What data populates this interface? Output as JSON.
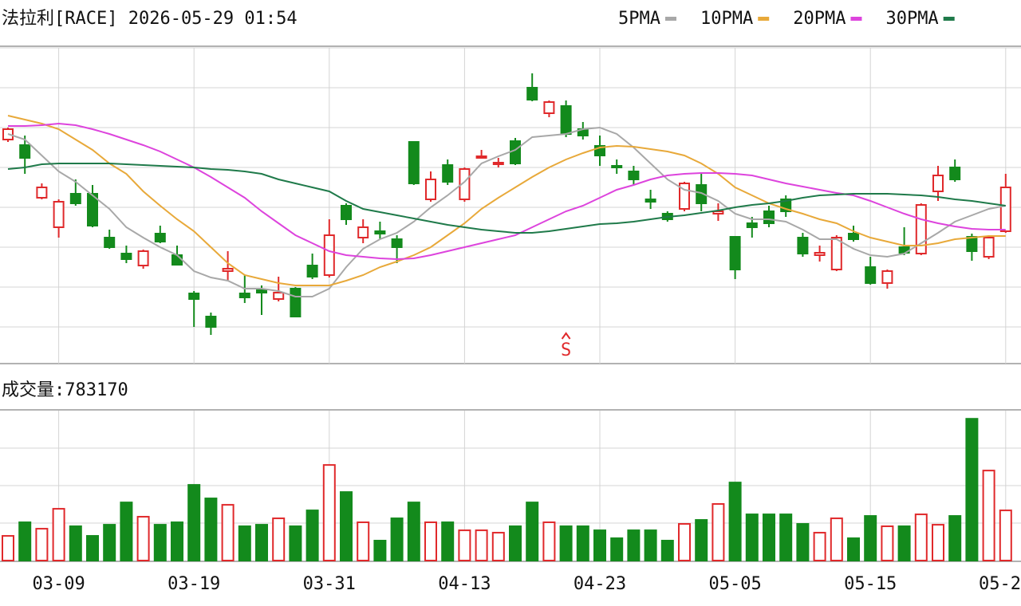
{
  "chart_data": {
    "type": "candlestick",
    "title": "法拉利[RACE] 2026-05-29 01:54",
    "categories": [
      null,
      null,
      null,
      "03-09",
      null,
      null,
      null,
      null,
      null,
      null,
      null,
      "03-19",
      null,
      null,
      null,
      null,
      null,
      null,
      null,
      "03-31",
      null,
      null,
      null,
      null,
      null,
      null,
      null,
      "04-13",
      null,
      null,
      null,
      null,
      null,
      null,
      null,
      "04-23",
      null,
      null,
      null,
      null,
      null,
      null,
      null,
      "05-05",
      null,
      null,
      null,
      null,
      null,
      null,
      null,
      "05-15",
      null,
      null,
      null,
      null,
      null,
      null,
      null,
      "05-2"
    ],
    "open": [
      27.5,
      26.8,
      20.2,
      16.5,
      20.7,
      20.7,
      15.2,
      13.2,
      11.7,
      15.7,
      13,
      8.2,
      5.3,
      11,
      8.2,
      8.7,
      7.5,
      8.8,
      11.7,
      10.5,
      19.2,
      15.2,
      16,
      15,
      27.2,
      20,
      24.3,
      20,
      25.3,
      24.5,
      27.3,
      34,
      30.8,
      31.7,
      28.8,
      26.7,
      24.2,
      23.5,
      20,
      18.2,
      18.8,
      21.8,
      18.2,
      15.3,
      17,
      18.5,
      20,
      15.2,
      13,
      11.2,
      15.7,
      11.5,
      9.5,
      14,
      13.2,
      21,
      24,
      15.3,
      12.8,
      16
    ],
    "high": [
      29,
      28,
      22,
      20,
      22.5,
      21.8,
      16.2,
      14.2,
      13.7,
      16.7,
      14.2,
      8.5,
      5.8,
      13.5,
      10.5,
      9.2,
      10.3,
      9,
      13.2,
      17.5,
      19.5,
      17.5,
      17.2,
      15.5,
      27.2,
      23.5,
      25,
      24,
      26.2,
      25.2,
      27.7,
      35.8,
      32.4,
      32.4,
      29.7,
      28,
      25,
      24.2,
      21.2,
      18.5,
      22.2,
      23.2,
      19.5,
      15.4,
      17.8,
      19.2,
      20.5,
      15.8,
      14.2,
      15.5,
      16.7,
      12.8,
      11.2,
      16.5,
      19.5,
      24.2,
      25,
      15.7,
      15.5,
      23.2
    ],
    "low": [
      27.2,
      23.2,
      20,
      15.2,
      19.2,
      16.5,
      13.8,
      12,
      11.3,
      14.5,
      11.7,
      4,
      3,
      9.8,
      7,
      5.5,
      7.2,
      5.2,
      10,
      10.2,
      16.8,
      14.5,
      15,
      12,
      21.8,
      19.7,
      21.8,
      19.7,
      25.2,
      24,
      24.3,
      32.3,
      30.3,
      27.8,
      27.5,
      24.2,
      23.2,
      21.8,
      18.8,
      17.2,
      18.5,
      18.5,
      17.3,
      10,
      15.2,
      16.5,
      17.8,
      12.8,
      12.2,
      11,
      14.7,
      9.3,
      8.8,
      13,
      13,
      19.8,
      22.2,
      12.3,
      12.5,
      15.8
    ],
    "close": [
      28.8,
      25.2,
      21.5,
      19.7,
      19.5,
      16.7,
      14,
      12.5,
      13.5,
      14.7,
      11.8,
      7.5,
      4,
      11.3,
      7.7,
      8.3,
      8.3,
      5.3,
      10.3,
      15.5,
      17.5,
      16.5,
      15.7,
      14,
      22,
      22.5,
      22.2,
      23.8,
      25.4,
      24.6,
      24.5,
      32.5,
      32.2,
      28.2,
      28,
      25.5,
      24,
      22.5,
      19.7,
      17.5,
      22,
      19.5,
      18.5,
      11.2,
      16.5,
      17,
      18.5,
      13.2,
      13.3,
      15.2,
      15,
      9.5,
      11,
      13.3,
      19.3,
      23,
      22.5,
      13.5,
      15.2,
      21.5
    ],
    "ylim": [
      0,
      39
    ],
    "up_color": "#e0292b",
    "down_color": "#138a1c",
    "annotation": "S",
    "series": [
      {
        "name": "5PMA",
        "color": "#a8a8a8",
        "values": [
          28.2,
          27.5,
          25.5,
          23.5,
          22.2,
          20.5,
          18.8,
          16.5,
          15.2,
          14,
          13,
          11,
          10.2,
          9.8,
          8.8,
          8.8,
          8.5,
          7.8,
          7.8,
          8.8,
          11.5,
          13.8,
          15,
          15.8,
          17.2,
          19,
          20.5,
          22.2,
          24.5,
          25.4,
          26.2,
          27.8,
          28,
          28.2,
          28.8,
          29,
          28.2,
          26.5,
          24.5,
          22.5,
          21.2,
          20.8,
          19.8,
          18.2,
          17.5,
          17.5,
          17.2,
          16.2,
          15,
          15,
          13.8,
          13,
          12.8,
          13.2,
          14.5,
          15.8,
          17.2,
          18,
          18.8,
          19.2
        ]
      },
      {
        "name": "10PMA",
        "color": "#e8a93a",
        "values": [
          30.5,
          30,
          29.5,
          28.8,
          27.5,
          26.2,
          24.5,
          23.2,
          21,
          19.2,
          17.5,
          16,
          14,
          12,
          10.5,
          10,
          9.5,
          9.2,
          9.2,
          9.2,
          9.8,
          10.5,
          11.5,
          12.2,
          13,
          14,
          15.5,
          17,
          18.8,
          20.2,
          21.5,
          22.8,
          24,
          25,
          25.8,
          26.5,
          26.7,
          26.6,
          26.3,
          26,
          25.5,
          24.5,
          23.2,
          21.5,
          20.5,
          19.5,
          18.8,
          18.2,
          17.5,
          17,
          16,
          15.2,
          14.7,
          14.2,
          14.2,
          14.5,
          15,
          15.2,
          15.4,
          15.4
        ]
      },
      {
        "name": "20PMA",
        "color": "#dd44dd",
        "values": [
          29.2,
          29.2,
          29.3,
          29.5,
          29.3,
          28.8,
          28.2,
          27.5,
          26.8,
          26,
          25,
          24,
          22.8,
          21.5,
          20.2,
          18.5,
          17,
          15.5,
          14.5,
          13.5,
          13,
          12.8,
          12.6,
          12.5,
          12.6,
          13,
          13.5,
          14,
          14.5,
          15,
          15.5,
          16.5,
          17.5,
          18.5,
          19.2,
          20.2,
          21.2,
          21.8,
          22.5,
          23,
          23.2,
          23.3,
          23.3,
          23.2,
          23,
          22.5,
          22,
          21.6,
          21.2,
          20.8,
          20.5,
          19.8,
          19,
          18.2,
          17.5,
          17,
          16.6,
          16.3,
          16.2,
          16.2
        ]
      },
      {
        "name": "30PMA",
        "color": "#1f7a4a",
        "values": [
          23.8,
          24,
          24.4,
          24.5,
          24.5,
          24.5,
          24.5,
          24.4,
          24.3,
          24.2,
          24.1,
          24,
          23.8,
          23.7,
          23.5,
          23.2,
          22.5,
          22,
          21.5,
          21,
          19.8,
          18.8,
          18.4,
          18,
          17.6,
          17.2,
          16.8,
          16.5,
          16.2,
          16,
          15.8,
          15.8,
          16,
          16.3,
          16.6,
          16.9,
          17,
          17.2,
          17.5,
          17.8,
          18,
          18.3,
          18.6,
          19,
          19.3,
          19.5,
          19.8,
          20.2,
          20.5,
          20.6,
          20.7,
          20.7,
          20.7,
          20.6,
          20.5,
          20.3,
          20,
          19.8,
          19.5,
          19.2
        ]
      }
    ],
    "volume": {
      "title": "成交量:",
      "ylim": [
        0,
        2340000
      ],
      "values": [
        385000,
        597000,
        497000,
        808000,
        535000,
        385000,
        559000,
        907000,
        684000,
        559000,
        597000,
        1181000,
        970000,
        870000,
        535000,
        559000,
        659000,
        535000,
        783000,
        1492000,
        1069000,
        597000,
        311000,
        659000,
        907000,
        597000,
        597000,
        472000,
        472000,
        435000,
        535000,
        907000,
        597000,
        535000,
        535000,
        472000,
        348000,
        472000,
        472000,
        311000,
        572000,
        634000,
        883000,
        1218000,
        721000,
        721000,
        721000,
        572000,
        435000,
        659000,
        348000,
        696000,
        535000,
        535000,
        721000,
        559000,
        696000,
        2213000,
        1405000,
        783170
      ]
    }
  }
}
